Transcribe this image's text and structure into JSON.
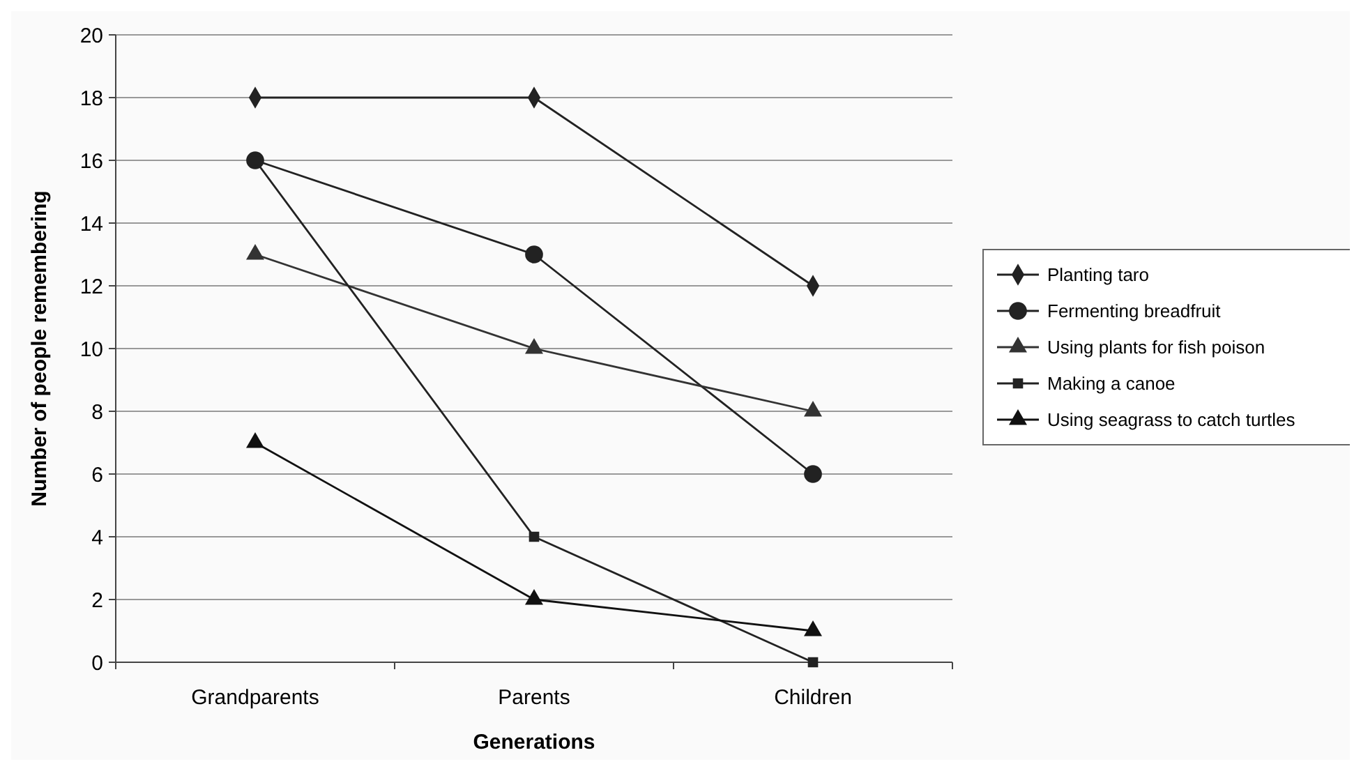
{
  "chart_data": {
    "type": "line",
    "xlabel": "Generations",
    "ylabel": "Number of people remembering",
    "categories": [
      "Grandparents",
      "Parents",
      "Children"
    ],
    "ylim": [
      0,
      20
    ],
    "yticks": [
      0,
      2,
      4,
      6,
      8,
      10,
      12,
      14,
      16,
      18,
      20
    ],
    "grid": "y",
    "legend": "right",
    "series": [
      {
        "name": "Planting taro",
        "color": "#222222",
        "marker": "diamond",
        "values": [
          18,
          18,
          12
        ]
      },
      {
        "name": "Fermenting breadfruit",
        "color": "#222222",
        "marker": "circle",
        "values": [
          16,
          13,
          6
        ]
      },
      {
        "name": "Using plants for fish poison",
        "color": "#333333",
        "marker": "triangle",
        "values": [
          13,
          10,
          8
        ]
      },
      {
        "name": "Making a canoe",
        "color": "#222222",
        "marker": "square",
        "values": [
          16,
          4,
          0
        ]
      },
      {
        "name": "Using seagrass to catch turtles",
        "color": "#111111",
        "marker": "triangle",
        "values": [
          7,
          2,
          1
        ]
      }
    ]
  }
}
